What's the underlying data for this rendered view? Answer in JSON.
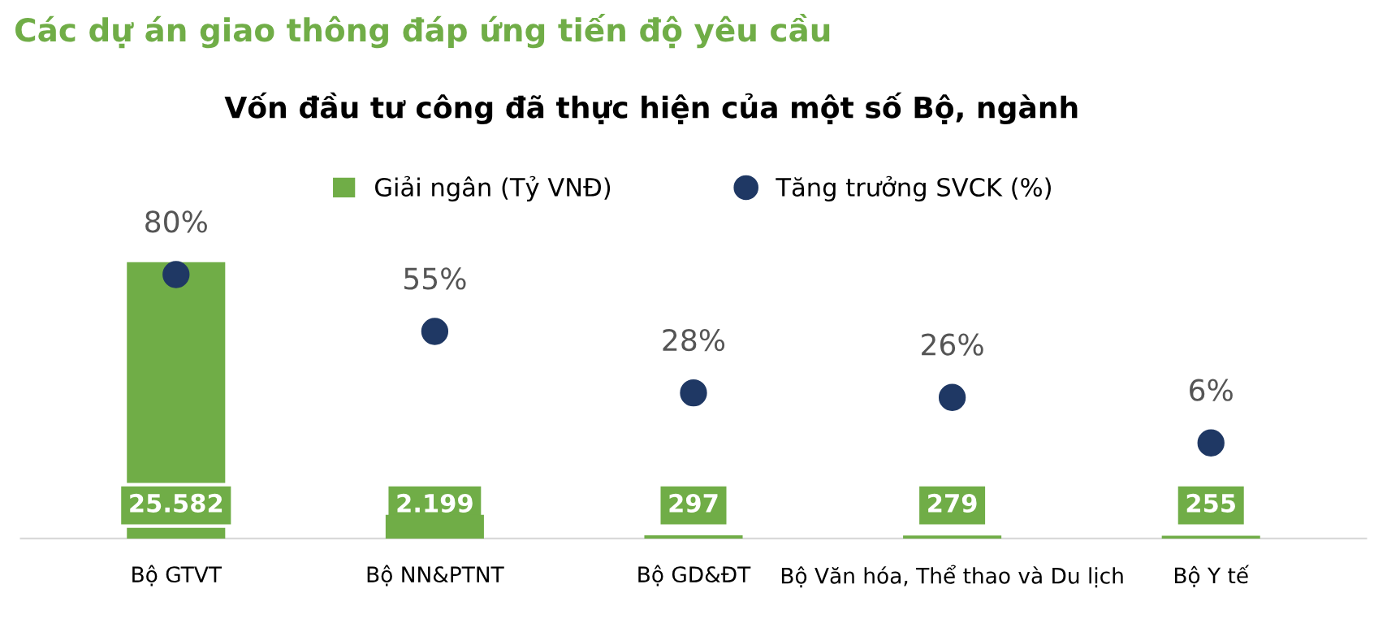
{
  "chart_data": {
    "type": "bar",
    "title": "Các dự án giao thông đáp ứng tiến độ yêu cầu",
    "subtitle": "Vốn đầu tư công đã thực hiện của một số Bộ, ngành",
    "categories": [
      "Bộ GTVT",
      "Bộ NN&PTNT",
      "Bộ GD&ĐT",
      "Bộ Văn hóa, Thể thao và Du lịch",
      "Bộ Y tế"
    ],
    "series": [
      {
        "name": "Giải ngân (Tỷ VNĐ)",
        "color": "#70ad47",
        "values": [
          25582,
          2199,
          297,
          279,
          255
        ],
        "value_labels": [
          "25.582",
          "2.199",
          "297",
          "279",
          "255"
        ]
      },
      {
        "name": "Tăng trưởng SVCK (%)",
        "type": "scatter",
        "axis": "y2",
        "color": "#1f3864",
        "values": [
          80,
          55,
          28,
          26,
          6
        ],
        "value_labels": [
          "80%",
          "55%",
          "28%",
          "26%",
          "6%"
        ]
      }
    ],
    "legend": "top",
    "marker": "circle",
    "tick_labels": "x"
  }
}
